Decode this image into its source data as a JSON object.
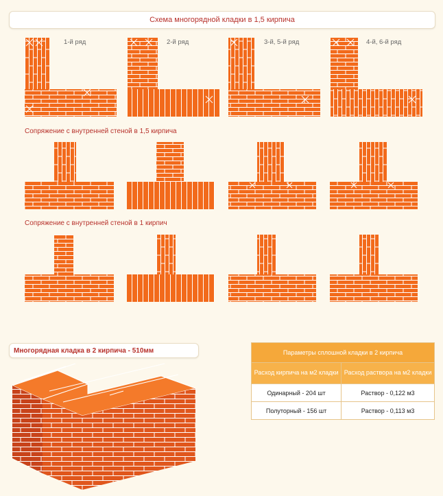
{
  "title": "Схема многорядной кладки в 1,5 кирпича",
  "row_labels": [
    "1-й ряд",
    "2-й ряд",
    "3-й, 5-й ряд",
    "4-й, 6-й ряд"
  ],
  "section_1": "Сопряжение с внутренней стеной в 1,5 кирпича",
  "section_2": "Сопряжение с внутренней стеной в 1 кирпич",
  "panel_title": "Многорядная кладка в 2 кирпича - 510мм",
  "table": {
    "title": "Параметры сплошной кладки в 2 кирпича",
    "col1": "Расход кирпича на м2 кладки",
    "col2": "Расход раствора на м2 кладки",
    "rows": [
      [
        "Одинарный - 204 шт",
        "Раствор - 0,122 м3"
      ],
      [
        "Полуторный - 156 шт",
        "Раствор - 0,113 м3"
      ]
    ]
  },
  "colors": {
    "brick": "#f26a1b",
    "brick_dark": "#d8520f",
    "mortar": "#ffffff",
    "accent": "#b7312b",
    "table_header": "#f5a83a"
  }
}
